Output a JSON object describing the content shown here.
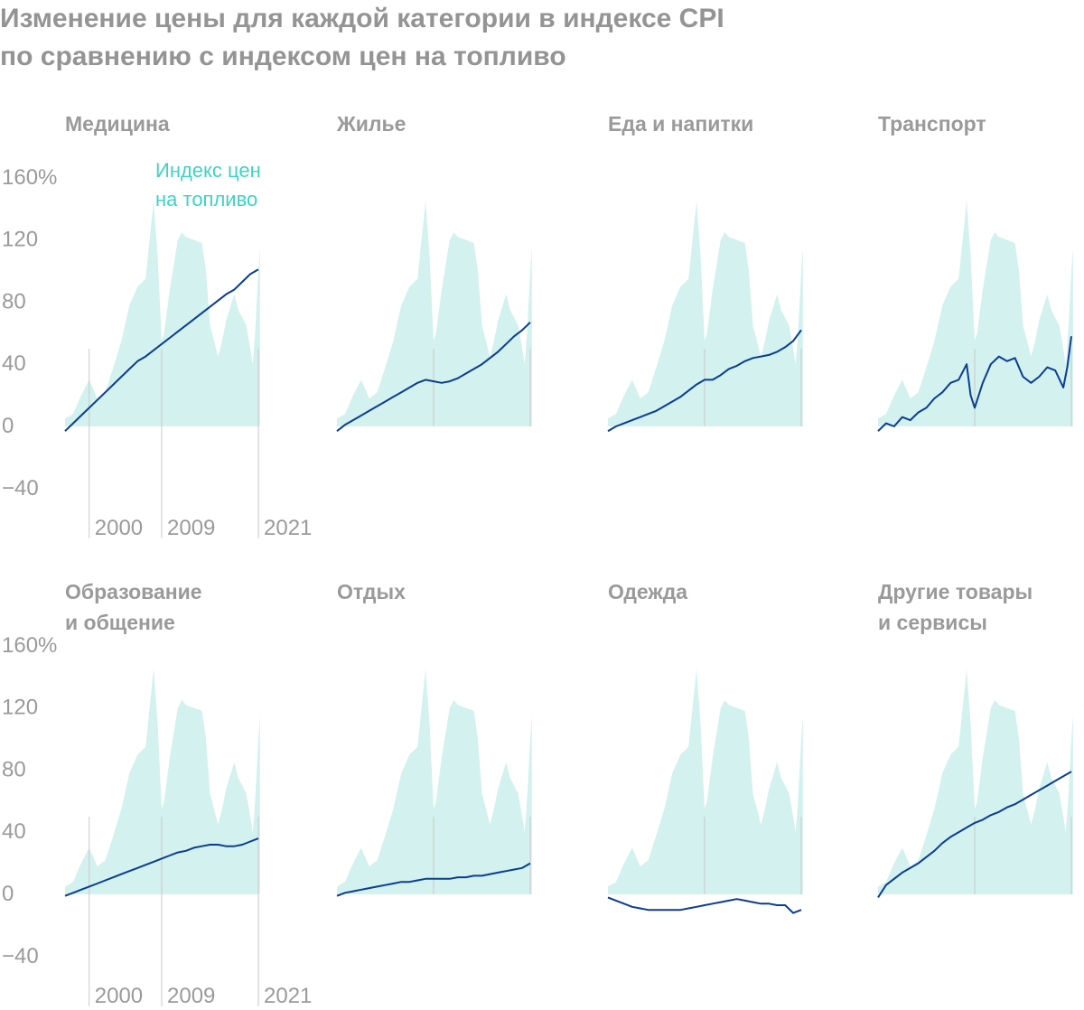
{
  "title_lines": [
    "Изменение цены для каждой категории в индексе CPI",
    "по сравнению с индексом цен на топливо"
  ],
  "colors": {
    "fuel_area": "#d3f1ee",
    "category_line": "#0a3d91",
    "text": "#9a9a9a",
    "legend": "#3fd2c4",
    "year_rule": "#c9c9c9"
  },
  "chart_data": {
    "type": "area",
    "layout": "small-multiples",
    "y_tick_labels": [
      "160%",
      "120",
      "80",
      "40",
      "0",
      "−40"
    ],
    "y_ticks": [
      160,
      120,
      80,
      40,
      0,
      -40
    ],
    "ylim": [
      -40,
      160
    ],
    "xlim": [
      1997,
      2021
    ],
    "x_tick_labels": [
      "2000",
      "2009",
      "2021"
    ],
    "x_ticks": [
      2000,
      2009,
      2021
    ],
    "legend_lines": [
      "Индекс цен",
      "на топливо"
    ],
    "fuel_series": {
      "name": "Индекс цен на топливо",
      "x": [
        1997.0,
        1998.0,
        1999.0,
        2000.0,
        2001.0,
        2002.0,
        2003.0,
        2004.0,
        2005.0,
        2006.0,
        2007.0,
        2007.5,
        2008.0,
        2008.5,
        2009.0,
        2009.3,
        2010.0,
        2011.0,
        2011.5,
        2012.0,
        2013.0,
        2014.0,
        2014.5,
        2015.0,
        2016.0,
        2016.5,
        2017.0,
        2018.0,
        2018.5,
        2019.0,
        2019.5,
        2020.0,
        2020.3,
        2020.6,
        2021.0,
        2021.2
      ],
      "values": [
        5,
        8,
        20,
        30,
        18,
        22,
        38,
        55,
        78,
        90,
        95,
        120,
        145,
        110,
        55,
        60,
        88,
        120,
        125,
        122,
        120,
        118,
        100,
        65,
        45,
        55,
        68,
        85,
        75,
        70,
        65,
        50,
        40,
        60,
        100,
        115
      ]
    },
    "panels": [
      {
        "title_lines": [
          "Медицина"
        ],
        "series": {
          "x": [
            1997,
            1998,
            1999,
            2000,
            2001,
            2002,
            2003,
            2004,
            2005,
            2006,
            2007,
            2008,
            2009,
            2010,
            2011,
            2012,
            2013,
            2014,
            2015,
            2016,
            2017,
            2018,
            2019,
            2020,
            2021
          ],
          "values": [
            -3,
            2,
            7,
            12,
            17,
            22,
            27,
            32,
            37,
            42,
            45,
            49,
            53,
            57,
            61,
            65,
            69,
            73,
            77,
            81,
            85,
            88,
            93,
            98,
            101
          ]
        }
      },
      {
        "title_lines": [
          "Жилье"
        ],
        "series": {
          "x": [
            1997,
            1998,
            1999,
            2000,
            2001,
            2002,
            2003,
            2004,
            2005,
            2006,
            2007,
            2008,
            2009,
            2010,
            2011,
            2012,
            2013,
            2014,
            2015,
            2016,
            2017,
            2018,
            2019,
            2020,
            2021
          ],
          "values": [
            -3,
            1,
            4,
            7,
            10,
            13,
            16,
            19,
            22,
            25,
            28,
            30,
            29,
            28,
            29,
            31,
            34,
            37,
            40,
            44,
            48,
            53,
            58,
            62,
            67
          ]
        }
      },
      {
        "title_lines": [
          "Еда и напитки"
        ],
        "series": {
          "x": [
            1997,
            1998,
            1999,
            2000,
            2001,
            2002,
            2003,
            2004,
            2005,
            2006,
            2007,
            2008,
            2009,
            2010,
            2011,
            2012,
            2013,
            2014,
            2015,
            2016,
            2017,
            2018,
            2019,
            2020,
            2021
          ],
          "values": [
            -3,
            0,
            2,
            4,
            6,
            8,
            10,
            13,
            16,
            19,
            23,
            27,
            30,
            30,
            33,
            37,
            39,
            42,
            44,
            45,
            46,
            48,
            51,
            55,
            62
          ]
        }
      },
      {
        "title_lines": [
          "Транспорт"
        ],
        "series": {
          "x": [
            1997,
            1998,
            1999,
            2000,
            2001,
            2002,
            2003,
            2004,
            2005,
            2006,
            2007,
            2008,
            2008.5,
            2009,
            2010,
            2011,
            2012,
            2013,
            2014,
            2015,
            2016,
            2017,
            2018,
            2019,
            2020,
            2020.5,
            2021
          ],
          "values": [
            -3,
            2,
            0,
            6,
            4,
            9,
            12,
            18,
            22,
            28,
            30,
            40,
            20,
            12,
            28,
            40,
            45,
            42,
            44,
            32,
            28,
            32,
            38,
            36,
            25,
            38,
            58
          ]
        }
      },
      {
        "title_lines": [
          "Образование",
          "и общение"
        ],
        "series": {
          "x": [
            1997,
            1998,
            1999,
            2000,
            2001,
            2002,
            2003,
            2004,
            2005,
            2006,
            2007,
            2008,
            2009,
            2010,
            2011,
            2012,
            2013,
            2014,
            2015,
            2016,
            2017,
            2018,
            2019,
            2020,
            2021
          ],
          "values": [
            -1,
            1,
            3,
            5,
            7,
            9,
            11,
            13,
            15,
            17,
            19,
            21,
            23,
            25,
            27,
            28,
            30,
            31,
            32,
            32,
            31,
            31,
            32,
            34,
            36
          ]
        }
      },
      {
        "title_lines": [
          "Отдых"
        ],
        "series": {
          "x": [
            1997,
            1998,
            1999,
            2000,
            2001,
            2002,
            2003,
            2004,
            2005,
            2006,
            2007,
            2008,
            2009,
            2010,
            2011,
            2012,
            2013,
            2014,
            2015,
            2016,
            2017,
            2018,
            2019,
            2020,
            2021
          ],
          "values": [
            -1,
            1,
            2,
            3,
            4,
            5,
            6,
            7,
            8,
            8,
            9,
            10,
            10,
            10,
            10,
            11,
            11,
            12,
            12,
            13,
            14,
            15,
            16,
            17,
            20
          ]
        }
      },
      {
        "title_lines": [
          "Одежда"
        ],
        "series": {
          "x": [
            1997,
            1998,
            1999,
            2000,
            2001,
            2002,
            2003,
            2004,
            2005,
            2006,
            2007,
            2008,
            2009,
            2010,
            2011,
            2012,
            2013,
            2014,
            2015,
            2016,
            2017,
            2018,
            2019,
            2020,
            2021
          ],
          "values": [
            -2,
            -4,
            -6,
            -8,
            -9,
            -10,
            -10,
            -10,
            -10,
            -10,
            -9,
            -8,
            -7,
            -6,
            -5,
            -4,
            -3,
            -4,
            -5,
            -6,
            -6,
            -7,
            -7,
            -12,
            -10
          ]
        }
      },
      {
        "title_lines": [
          "Другие товары",
          "и сервисы"
        ],
        "series": {
          "x": [
            1997,
            1998,
            1999,
            2000,
            2001,
            2002,
            2003,
            2004,
            2005,
            2006,
            2007,
            2008,
            2009,
            2010,
            2011,
            2012,
            2013,
            2014,
            2015,
            2016,
            2017,
            2018,
            2019,
            2020,
            2021
          ],
          "values": [
            -2,
            6,
            10,
            14,
            17,
            20,
            24,
            28,
            33,
            37,
            40,
            43,
            46,
            48,
            51,
            53,
            56,
            58,
            61,
            64,
            67,
            70,
            73,
            76,
            79
          ]
        }
      }
    ]
  }
}
